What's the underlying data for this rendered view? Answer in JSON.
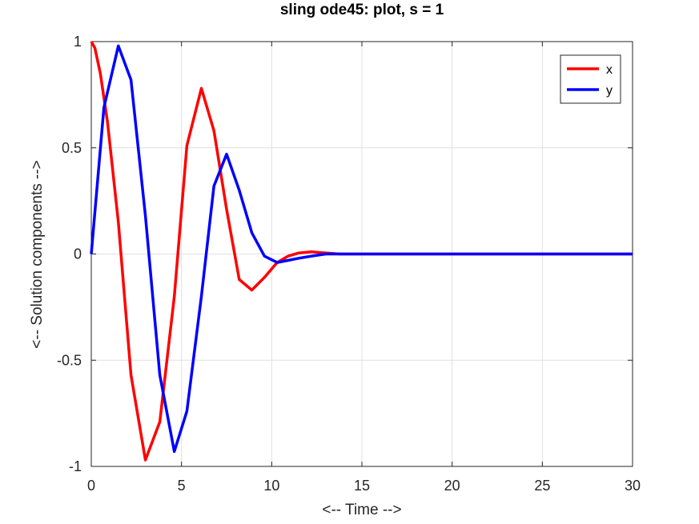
{
  "chart_data": {
    "type": "line",
    "title": "sling ode45: plot, s = 1",
    "xlabel": "<-- Time -->",
    "ylabel": "<-- Solution components -->",
    "xlim": [
      0,
      30
    ],
    "ylim": [
      -1,
      1
    ],
    "xticks": [
      0,
      5,
      10,
      15,
      20,
      25,
      30
    ],
    "xtick_labels": [
      "0",
      "5",
      "10",
      "15",
      "20",
      "25",
      "30"
    ],
    "yticks": [
      -1,
      -0.5,
      0,
      0.5,
      1
    ],
    "ytick_labels": [
      "-1",
      "-0.5",
      "0",
      "0.5",
      "1"
    ],
    "grid": true,
    "legend_position": "top-right",
    "series": [
      {
        "name": "x",
        "color": "#ff0000",
        "x": [
          0,
          0.2,
          0.5,
          0.9,
          1.5,
          2.2,
          3.0,
          3.8,
          4.6,
          5.3,
          6.1,
          6.8,
          7.5,
          8.2,
          8.9,
          9.6,
          10.3,
          10.9,
          11.5,
          12.2,
          13.0,
          13.8,
          15,
          20,
          25,
          30
        ],
        "y": [
          1.0,
          0.97,
          0.85,
          0.62,
          0.15,
          -0.57,
          -0.97,
          -0.79,
          -0.2,
          0.51,
          0.78,
          0.58,
          0.21,
          -0.12,
          -0.17,
          -0.11,
          -0.04,
          -0.01,
          0.005,
          0.01,
          0.005,
          0.0,
          0.0,
          0.0,
          0.0,
          0.0
        ]
      },
      {
        "name": "y",
        "color": "#0000ff",
        "x": [
          0,
          0.7,
          1.5,
          2.2,
          3.0,
          3.8,
          4.6,
          5.3,
          6.1,
          6.8,
          7.5,
          8.2,
          8.9,
          9.6,
          10.3,
          10.9,
          11.5,
          12.2,
          13.0,
          13.8,
          15,
          20,
          25,
          30
        ],
        "y": [
          0.0,
          0.69,
          0.98,
          0.82,
          0.18,
          -0.57,
          -0.93,
          -0.74,
          -0.2,
          0.32,
          0.47,
          0.3,
          0.1,
          -0.01,
          -0.04,
          -0.03,
          -0.02,
          -0.01,
          0.0,
          0.0,
          0.0,
          0.0,
          0.0,
          0.0
        ]
      }
    ]
  }
}
